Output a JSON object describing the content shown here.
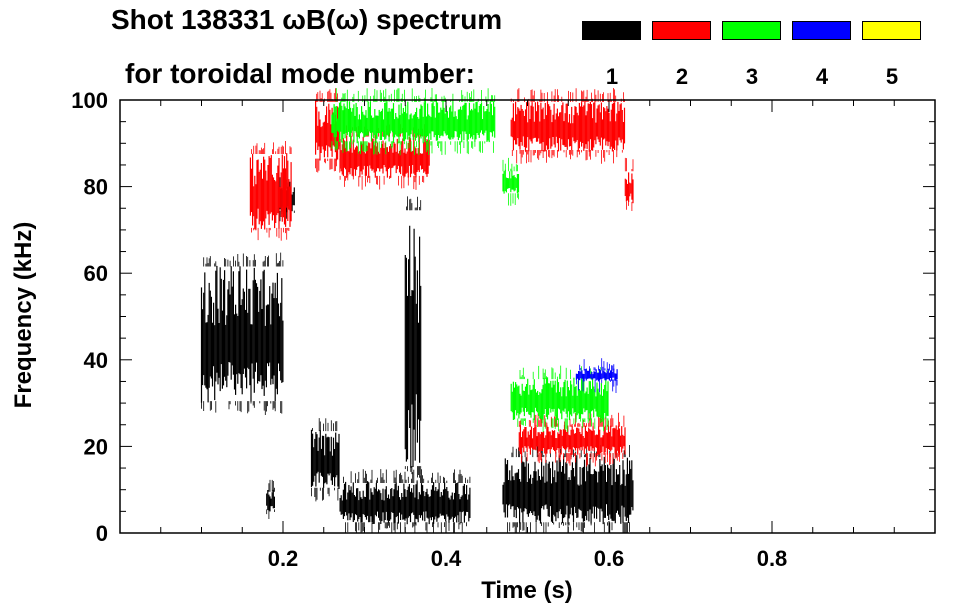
{
  "title": {
    "line1": "Shot 138331 ωB(ω) spectrum",
    "line2": "for toroidal mode number:"
  },
  "legend": [
    {
      "label": "1",
      "color": "#000000"
    },
    {
      "label": "2",
      "color": "#ff0000"
    },
    {
      "label": "3",
      "color": "#00ff00"
    },
    {
      "label": "4",
      "color": "#0000ff"
    },
    {
      "label": "5",
      "color": "#ffff00"
    }
  ],
  "chart_data": {
    "type": "heatmap",
    "title": "Shot 138331 ωB(ω) spectrum for toroidal mode number",
    "xlabel": "Time (s)",
    "ylabel": "Frequency (kHz)",
    "xlim": [
      0,
      1.0
    ],
    "ylim": [
      0,
      100
    ],
    "xticks": [
      0.2,
      0.4,
      0.6,
      0.8
    ],
    "xtick_labels": [
      "0.2",
      "0.4",
      "0.6",
      "0.8"
    ],
    "yticks": [
      0,
      20,
      40,
      60,
      80,
      100
    ],
    "ytick_labels": [
      "0",
      "20",
      "40",
      "60",
      "80",
      "100"
    ],
    "series": [
      {
        "name": "n=1",
        "color": "#000000",
        "regions": [
          {
            "t0": 0.1,
            "t1": 0.2,
            "f0": 30,
            "f1": 62
          },
          {
            "t0": 0.195,
            "t1": 0.215,
            "f0": 74,
            "f1": 80
          },
          {
            "t0": 0.27,
            "t1": 0.43,
            "f0": 2,
            "f1": 12
          },
          {
            "t0": 0.35,
            "t1": 0.37,
            "f0": 15,
            "f1": 75
          },
          {
            "t0": 0.47,
            "t1": 0.63,
            "f0": 2,
            "f1": 18
          },
          {
            "t0": 0.235,
            "t1": 0.27,
            "f0": 10,
            "f1": 24
          },
          {
            "t0": 0.18,
            "t1": 0.19,
            "f0": 5,
            "f1": 10
          }
        ]
      },
      {
        "name": "n=2",
        "color": "#ff0000",
        "regions": [
          {
            "t0": 0.16,
            "t1": 0.21,
            "f0": 70,
            "f1": 88
          },
          {
            "t0": 0.24,
            "t1": 0.27,
            "f0": 86,
            "f1": 100
          },
          {
            "t0": 0.27,
            "t1": 0.38,
            "f0": 82,
            "f1": 92
          },
          {
            "t0": 0.48,
            "t1": 0.62,
            "f0": 88,
            "f1": 100
          },
          {
            "t0": 0.49,
            "t1": 0.62,
            "f0": 18,
            "f1": 25
          },
          {
            "t0": 0.62,
            "t1": 0.63,
            "f0": 76,
            "f1": 84
          }
        ]
      },
      {
        "name": "n=3",
        "color": "#00ff00",
        "regions": [
          {
            "t0": 0.26,
            "t1": 0.46,
            "f0": 90,
            "f1": 100
          },
          {
            "t0": 0.48,
            "t1": 0.6,
            "f0": 26,
            "f1": 36
          },
          {
            "t0": 0.47,
            "t1": 0.49,
            "f0": 78,
            "f1": 84
          }
        ]
      },
      {
        "name": "n=4",
        "color": "#0000ff",
        "regions": [
          {
            "t0": 0.56,
            "t1": 0.61,
            "f0": 35,
            "f1": 38
          }
        ]
      },
      {
        "name": "n=5",
        "color": "#ffff00",
        "regions": []
      }
    ]
  }
}
